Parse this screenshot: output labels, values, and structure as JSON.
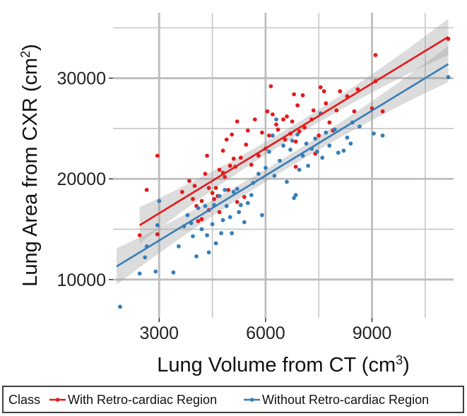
{
  "chart_data": {
    "type": "scatter",
    "title": "",
    "xlabel": "Lung Volume from CT (cm",
    "xlabel_sup": "3",
    "xlabel_end": ")",
    "ylabel": "Lung Area from CXR (cm",
    "ylabel_sup": "2",
    "ylabel_end": ")",
    "xlim": [
      1700,
      11300
    ],
    "ylim": [
      6200,
      36500
    ],
    "xticks": [
      3000,
      6000,
      9000
    ],
    "xtick_labels": [
      "3000",
      "6000",
      "9000"
    ],
    "yticks": [
      10000,
      20000,
      30000
    ],
    "ytick_labels": [
      "10000",
      "20000",
      "30000"
    ],
    "grid": true,
    "legend": {
      "position": "bottom",
      "title": "Class",
      "entries": [
        "With Retro-cardiac Region",
        "Without Retro-cardiac Region"
      ]
    },
    "series": [
      {
        "name": "With Retro-cardiac Region",
        "color": "#e41a1c",
        "points": [
          [
            2450,
            14400
          ],
          [
            2650,
            18900
          ],
          [
            2950,
            22300
          ],
          [
            2950,
            14500
          ],
          [
            3650,
            18700
          ],
          [
            3850,
            19800
          ],
          [
            3950,
            18000
          ],
          [
            4000,
            19300
          ],
          [
            4050,
            17300
          ],
          [
            4100,
            15800
          ],
          [
            4200,
            17800
          ],
          [
            4200,
            16000
          ],
          [
            4300,
            20500
          ],
          [
            4350,
            22300
          ],
          [
            4400,
            19100
          ],
          [
            4400,
            16900
          ],
          [
            4500,
            18600
          ],
          [
            4550,
            18000
          ],
          [
            4600,
            19100
          ],
          [
            4650,
            18300
          ],
          [
            4700,
            20900
          ],
          [
            4700,
            16700
          ],
          [
            4800,
            20600
          ],
          [
            4800,
            22800
          ],
          [
            4850,
            20200
          ],
          [
            4900,
            23900
          ],
          [
            4950,
            18900
          ],
          [
            5000,
            21300
          ],
          [
            5050,
            24400
          ],
          [
            5100,
            22000
          ],
          [
            5150,
            21200
          ],
          [
            5200,
            25700
          ],
          [
            5200,
            17700
          ],
          [
            5300,
            22100
          ],
          [
            5400,
            18200
          ],
          [
            5450,
            23400
          ],
          [
            5500,
            24800
          ],
          [
            5600,
            21400
          ],
          [
            5700,
            25900
          ],
          [
            5800,
            22300
          ],
          [
            5900,
            24600
          ],
          [
            6000,
            23000
          ],
          [
            6050,
            26700
          ],
          [
            6100,
            24300
          ],
          [
            6150,
            29200
          ],
          [
            6200,
            26400
          ],
          [
            6300,
            25400
          ],
          [
            6350,
            24900
          ],
          [
            6500,
            25900
          ],
          [
            6550,
            23900
          ],
          [
            6600,
            26200
          ],
          [
            6700,
            24500
          ],
          [
            6750,
            25700
          ],
          [
            6800,
            28400
          ],
          [
            6850,
            23700
          ],
          [
            6850,
            21200
          ],
          [
            6900,
            27300
          ],
          [
            6950,
            24700
          ],
          [
            7050,
            28300
          ],
          [
            7100,
            25100
          ],
          [
            7300,
            25900
          ],
          [
            7350,
            26800
          ],
          [
            7400,
            22500
          ],
          [
            7500,
            24300
          ],
          [
            7550,
            29100
          ],
          [
            7650,
            28700
          ],
          [
            7700,
            27500
          ],
          [
            7800,
            25600
          ],
          [
            7900,
            24800
          ],
          [
            8000,
            26800
          ],
          [
            8100,
            28700
          ],
          [
            8300,
            28200
          ],
          [
            8500,
            26700
          ],
          [
            8600,
            28900
          ],
          [
            9000,
            27000
          ],
          [
            9100,
            32300
          ],
          [
            9100,
            29700
          ],
          [
            9300,
            26700
          ],
          [
            11150,
            33900
          ]
        ],
        "fit": [
          [
            2450,
            15400
          ],
          [
            11150,
            34100
          ]
        ]
      },
      {
        "name": "Without Retro-cardiac Region",
        "color": "#377eb8",
        "points": [
          [
            1900,
            7300
          ],
          [
            2450,
            10600
          ],
          [
            2600,
            12200
          ],
          [
            2650,
            13300
          ],
          [
            2900,
            10800
          ],
          [
            2950,
            15400
          ],
          [
            3000,
            17800
          ],
          [
            3400,
            10700
          ],
          [
            3550,
            13300
          ],
          [
            3700,
            15300
          ],
          [
            3800,
            16400
          ],
          [
            3900,
            15600
          ],
          [
            3950,
            14300
          ],
          [
            4050,
            12300
          ],
          [
            4100,
            17100
          ],
          [
            4200,
            15000
          ],
          [
            4300,
            17300
          ],
          [
            4350,
            14400
          ],
          [
            4400,
            12700
          ],
          [
            4500,
            15500
          ],
          [
            4550,
            17400
          ],
          [
            4600,
            13600
          ],
          [
            4700,
            18300
          ],
          [
            4750,
            14600
          ],
          [
            4800,
            15900
          ],
          [
            4850,
            18900
          ],
          [
            4900,
            17300
          ],
          [
            5000,
            16200
          ],
          [
            5050,
            14600
          ],
          [
            5100,
            18700
          ],
          [
            5200,
            19000
          ],
          [
            5250,
            16700
          ],
          [
            5300,
            17400
          ],
          [
            5400,
            15700
          ],
          [
            5500,
            17600
          ],
          [
            5600,
            18400
          ],
          [
            5650,
            19600
          ],
          [
            5800,
            20500
          ],
          [
            5900,
            16400
          ],
          [
            6000,
            21100
          ],
          [
            6100,
            22700
          ],
          [
            6200,
            24300
          ],
          [
            6250,
            20300
          ],
          [
            6300,
            25900
          ],
          [
            6400,
            21800
          ],
          [
            6500,
            23300
          ],
          [
            6600,
            19700
          ],
          [
            6700,
            22900
          ],
          [
            6750,
            23800
          ],
          [
            6800,
            18100
          ],
          [
            6850,
            18400
          ],
          [
            6900,
            24400
          ],
          [
            6950,
            20900
          ],
          [
            7050,
            22300
          ],
          [
            7150,
            23500
          ],
          [
            7200,
            21300
          ],
          [
            7300,
            23000
          ],
          [
            7400,
            24000
          ],
          [
            7450,
            22700
          ],
          [
            7550,
            26500
          ],
          [
            7600,
            22100
          ],
          [
            7700,
            24600
          ],
          [
            7800,
            23300
          ],
          [
            7950,
            24900
          ],
          [
            8050,
            22600
          ],
          [
            8200,
            22800
          ],
          [
            8300,
            24100
          ],
          [
            8400,
            23500
          ],
          [
            8450,
            25600
          ],
          [
            8650,
            25200
          ],
          [
            9050,
            24500
          ],
          [
            9300,
            24300
          ],
          [
            11150,
            30100
          ]
        ],
        "fit": [
          [
            1800,
            11300
          ],
          [
            11150,
            31400
          ]
        ]
      }
    ]
  }
}
